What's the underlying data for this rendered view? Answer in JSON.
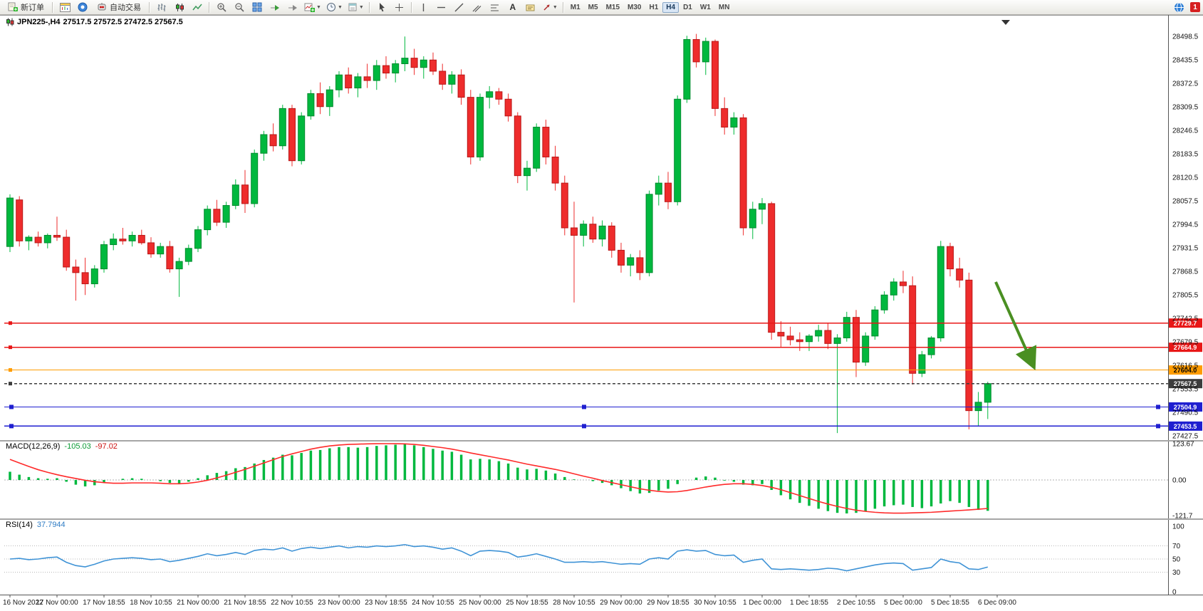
{
  "toolbar": {
    "new_order_label": "新订单",
    "autotrading_label": "自动交易",
    "text_tool_label": "A",
    "timeframes": [
      "M1",
      "M5",
      "M15",
      "M30",
      "H1",
      "H4",
      "D1",
      "W1",
      "MN"
    ],
    "active_timeframe": "H4",
    "badge": "1"
  },
  "chart": {
    "symbol_period": "JPN225-,H4",
    "ohlc": "27517.5 27572.5 27472.5 27567.5"
  },
  "macd": {
    "label": "MACD(12,26,9)",
    "value_main": "-105.03",
    "value_signal": "-97.02"
  },
  "rsi": {
    "label": "RSI(14)",
    "value": "37.7944"
  },
  "chart_data": {
    "type": "candlestick",
    "symbol": "JPN225-",
    "timeframe": "H4",
    "last_ohlc": {
      "open": 27517.5,
      "high": 27572.5,
      "low": 27472.5,
      "close": 27567.5
    },
    "up_color": "#00b83e",
    "down_color": "#ee2c2c",
    "y_ticks": [
      28498.5,
      28435.5,
      28372.5,
      28309.5,
      28246.5,
      28183.5,
      28120.5,
      28057.5,
      27994.5,
      27931.5,
      27868.5,
      27805.5,
      27742.5,
      27679.5,
      27616.5,
      27553.5,
      27490.5,
      27427.5
    ],
    "x_labels": [
      "16 Nov 2022",
      "17 Nov 00:00",
      "17 Nov 18:55",
      "18 Nov 10:55",
      "21 Nov 00:00",
      "21 Nov 18:55",
      "22 Nov 10:55",
      "23 Nov 00:00",
      "23 Nov 18:55",
      "24 Nov 10:55",
      "25 Nov 00:00",
      "25 Nov 18:55",
      "28 Nov 10:55",
      "29 Nov 00:00",
      "29 Nov 18:55",
      "30 Nov 10:55",
      "1 Dec 00:00",
      "1 Dec 18:55",
      "2 Dec 10:55",
      "5 Dec 00:00",
      "5 Dec 18:55",
      "6 Dec 09:00"
    ],
    "candles": [
      [
        27935,
        28075,
        27920,
        28065
      ],
      [
        28060,
        28070,
        27935,
        27950
      ],
      [
        27950,
        27965,
        27925,
        27960
      ],
      [
        27960,
        27975,
        27935,
        27945
      ],
      [
        27945,
        27970,
        27930,
        27965
      ],
      [
        27965,
        28015,
        27950,
        27960
      ],
      [
        27960,
        27980,
        27870,
        27880
      ],
      [
        27880,
        27900,
        27790,
        27865
      ],
      [
        27865,
        27905,
        27805,
        27835
      ],
      [
        27835,
        27885,
        27825,
        27875
      ],
      [
        27875,
        27950,
        27865,
        27940
      ],
      [
        27940,
        27970,
        27925,
        27955
      ],
      [
        27955,
        27985,
        27940,
        27950
      ],
      [
        27950,
        27975,
        27935,
        27965
      ],
      [
        27965,
        27980,
        27940,
        27945
      ],
      [
        27945,
        27960,
        27905,
        27915
      ],
      [
        27915,
        27945,
        27905,
        27935
      ],
      [
        27935,
        27950,
        27865,
        27875
      ],
      [
        27875,
        27905,
        27800,
        27895
      ],
      [
        27895,
        27940,
        27885,
        27930
      ],
      [
        27930,
        27990,
        27920,
        27980
      ],
      [
        27980,
        28045,
        27965,
        28035
      ],
      [
        28035,
        28060,
        27990,
        28000
      ],
      [
        28000,
        28055,
        27985,
        28045
      ],
      [
        28045,
        28115,
        28035,
        28100
      ],
      [
        28100,
        28140,
        28025,
        28050
      ],
      [
        28050,
        28195,
        28040,
        28185
      ],
      [
        28185,
        28245,
        28165,
        28235
      ],
      [
        28235,
        28265,
        28190,
        28205
      ],
      [
        28205,
        28315,
        28195,
        28305
      ],
      [
        28305,
        28315,
        28150,
        28165
      ],
      [
        28165,
        28295,
        28155,
        28285
      ],
      [
        28285,
        28355,
        28275,
        28345
      ],
      [
        28345,
        28375,
        28290,
        28310
      ],
      [
        28310,
        28365,
        28285,
        28355
      ],
      [
        28355,
        28405,
        28335,
        28395
      ],
      [
        28395,
        28415,
        28345,
        28360
      ],
      [
        28360,
        28400,
        28335,
        28390
      ],
      [
        28390,
        28425,
        28360,
        28380
      ],
      [
        28380,
        28435,
        28355,
        28420
      ],
      [
        28420,
        28445,
        28385,
        28400
      ],
      [
        28400,
        28435,
        28375,
        28425
      ],
      [
        28425,
        28498,
        28405,
        28440
      ],
      [
        28440,
        28465,
        28395,
        28415
      ],
      [
        28415,
        28445,
        28385,
        28435
      ],
      [
        28435,
        28455,
        28395,
        28405
      ],
      [
        28405,
        28425,
        28355,
        28370
      ],
      [
        28370,
        28405,
        28345,
        28395
      ],
      [
        28395,
        28410,
        28315,
        28335
      ],
      [
        28335,
        28355,
        28155,
        28175
      ],
      [
        28175,
        28345,
        28165,
        28335
      ],
      [
        28335,
        28365,
        28305,
        28350
      ],
      [
        28350,
        28360,
        28315,
        28330
      ],
      [
        28330,
        28345,
        28270,
        28285
      ],
      [
        28285,
        28295,
        28105,
        28125
      ],
      [
        28125,
        28165,
        28085,
        28145
      ],
      [
        28145,
        28265,
        28135,
        28255
      ],
      [
        28255,
        28275,
        28155,
        28175
      ],
      [
        28175,
        28205,
        28085,
        28105
      ],
      [
        28105,
        28125,
        27965,
        27985
      ],
      [
        27985,
        28055,
        27785,
        27965
      ],
      [
        27965,
        28005,
        27935,
        27995
      ],
      [
        27995,
        28015,
        27945,
        27955
      ],
      [
        27955,
        28005,
        27935,
        27990
      ],
      [
        27990,
        28000,
        27905,
        27925
      ],
      [
        27925,
        27945,
        27865,
        27885
      ],
      [
        27885,
        27915,
        27855,
        27905
      ],
      [
        27905,
        27925,
        27845,
        27865
      ],
      [
        27865,
        28085,
        27855,
        28075
      ],
      [
        28075,
        28125,
        28045,
        28105
      ],
      [
        28105,
        28135,
        28035,
        28055
      ],
      [
        28055,
        28340,
        28045,
        28330
      ],
      [
        28330,
        28500,
        28320,
        28490
      ],
      [
        28490,
        28505,
        28415,
        28430
      ],
      [
        28430,
        28495,
        28395,
        28485
      ],
      [
        28485,
        28490,
        28285,
        28305
      ],
      [
        28305,
        28335,
        28235,
        28255
      ],
      [
        28255,
        28295,
        28235,
        28280
      ],
      [
        28280,
        28290,
        27965,
        27985
      ],
      [
        27985,
        28055,
        27955,
        28035
      ],
      [
        28035,
        28065,
        27995,
        28050
      ],
      [
        28050,
        28055,
        27685,
        27705
      ],
      [
        27705,
        27735,
        27665,
        27695
      ],
      [
        27695,
        27720,
        27670,
        27685
      ],
      [
        27685,
        27705,
        27655,
        27680
      ],
      [
        27680,
        27700,
        27655,
        27695
      ],
      [
        27695,
        27725,
        27680,
        27710
      ],
      [
        27710,
        27730,
        27660,
        27675
      ],
      [
        27675,
        27700,
        27435,
        27690
      ],
      [
        27690,
        27760,
        27680,
        27745
      ],
      [
        27745,
        27765,
        27585,
        27625
      ],
      [
        27625,
        27705,
        27615,
        27695
      ],
      [
        27695,
        27775,
        27685,
        27765
      ],
      [
        27765,
        27815,
        27755,
        27805
      ],
      [
        27805,
        27850,
        27790,
        27840
      ],
      [
        27840,
        27870,
        27810,
        27830
      ],
      [
        27830,
        27855,
        27565,
        27595
      ],
      [
        27595,
        27655,
        27585,
        27645
      ],
      [
        27645,
        27695,
        27635,
        27690
      ],
      [
        27690,
        27950,
        27680,
        27935
      ],
      [
        27935,
        27945,
        27855,
        27875
      ],
      [
        27875,
        27905,
        27825,
        27845
      ],
      [
        27845,
        27865,
        27445,
        27495
      ],
      [
        27495,
        27545,
        27455,
        27517.5
      ],
      [
        27517.5,
        27572.5,
        27472.5,
        27567.5
      ]
    ],
    "hlines": [
      {
        "price": 27729.7,
        "label": "27729.7",
        "color": "#e81717",
        "style": "solid",
        "handles": false
      },
      {
        "price": 27664.9,
        "label": "27664.9",
        "color": "#e81717",
        "style": "solid",
        "handles": false
      },
      {
        "price": 27604.0,
        "label": "27604.0",
        "color": "#ff9c00",
        "style": "solid",
        "handles": false
      },
      {
        "price": 27567.5,
        "label": "27567.5",
        "color": "#3c3c3c",
        "style": "dashed",
        "handles": false
      },
      {
        "price": 27504.9,
        "label": "27504.9",
        "color": "#1f1fd0",
        "style": "solid",
        "handles": true
      },
      {
        "price": 27453.5,
        "label": "27453.5",
        "color": "#1f1fd0",
        "style": "solid",
        "handles": true
      }
    ],
    "arrow": {
      "from_price": 27840,
      "to_price": 27610,
      "color": "#4a8f22"
    },
    "indicators": {
      "macd": {
        "name": "MACD",
        "params": "12,26,9",
        "hist_color": "#00b83e",
        "signal_color": "#ff2a2a",
        "y_ticks": [
          {
            "label": "123.67",
            "value": 123.67
          },
          {
            "label": "0.00",
            "value": 0
          },
          {
            "label": "-121.7",
            "value": -121.7
          }
        ],
        "histogram": [
          28,
          18,
          10,
          6,
          4,
          6,
          -6,
          -16,
          -22,
          -18,
          -8,
          0,
          4,
          6,
          4,
          0,
          -4,
          -10,
          -12,
          -6,
          6,
          16,
          24,
          30,
          40,
          44,
          56,
          68,
          76,
          86,
          84,
          92,
          100,
          102,
          108,
          112,
          112,
          110,
          112,
          116,
          118,
          120,
          123,
          118,
          112,
          106,
          100,
          96,
          86,
          70,
          72,
          70,
          64,
          56,
          42,
          36,
          38,
          32,
          22,
          10,
          2,
          0,
          -4,
          -10,
          -18,
          -28,
          -38,
          -46,
          -44,
          -36,
          -30,
          -14,
          0,
          8,
          12,
          8,
          -2,
          -6,
          -16,
          -18,
          -14,
          -34,
          -52,
          -66,
          -78,
          -88,
          -98,
          -106,
          -112,
          -114,
          -112,
          -106,
          -98,
          -90,
          -86,
          -84,
          -92,
          -96,
          -90,
          -80,
          -72,
          -78,
          -92,
          -102,
          -105.03
        ],
        "signal": [
          70,
          58,
          46,
          35,
          26,
          18,
          11,
          5,
          -1,
          -6,
          -9,
          -11,
          -11,
          -10,
          -10,
          -10,
          -11,
          -13,
          -13,
          -11,
          -7,
          -1,
          7,
          16,
          26,
          36,
          47,
          58,
          69,
          80,
          89,
          97,
          105,
          111,
          116,
          119,
          121,
          122,
          123,
          123.5,
          123.67,
          123.5,
          123,
          121,
          118,
          114,
          110,
          105,
          99,
          92,
          86,
          80,
          74,
          68,
          61,
          54,
          48,
          42,
          36,
          29,
          21,
          13,
          6,
          -2,
          -9,
          -16,
          -23,
          -30,
          -35,
          -39,
          -41,
          -40,
          -36,
          -30,
          -24,
          -19,
          -15,
          -13,
          -13,
          -15,
          -19,
          -25,
          -33,
          -43,
          -53,
          -63,
          -73,
          -82,
          -90,
          -97,
          -103,
          -107,
          -110,
          -112,
          -113,
          -113,
          -112,
          -111,
          -110,
          -108,
          -106,
          -104,
          -102,
          -99.5,
          -97.02
        ]
      },
      "rsi": {
        "name": "RSI",
        "period": 14,
        "color": "#3f93d6",
        "levels": [
          70,
          50,
          30
        ],
        "y_ticks": [
          {
            "label": "100",
            "value": 100
          },
          {
            "label": "70",
            "value": 70
          },
          {
            "label": "50",
            "value": 50
          },
          {
            "label": "30",
            "value": 30
          },
          {
            "label": "0",
            "value": 0
          }
        ],
        "values": [
          50,
          51,
          49,
          50,
          52,
          53,
          45,
          40,
          38,
          42,
          47,
          50,
          51,
          52,
          51,
          49,
          50,
          46,
          48,
          51,
          54,
          58,
          55,
          57,
          60,
          57,
          63,
          65,
          64,
          67,
          62,
          66,
          68,
          66,
          68,
          70,
          67,
          69,
          68,
          70,
          69,
          70,
          72,
          69,
          70,
          68,
          65,
          67,
          62,
          55,
          62,
          63,
          62,
          60,
          53,
          55,
          58,
          54,
          50,
          45,
          45,
          46,
          45,
          46,
          44,
          42,
          43,
          42,
          50,
          52,
          50,
          62,
          64,
          62,
          63,
          57,
          55,
          56,
          45,
          48,
          50,
          35,
          34,
          35,
          34,
          33,
          34,
          36,
          35,
          32,
          35,
          38,
          41,
          43,
          44,
          43,
          33,
          35,
          37,
          50,
          46,
          44,
          35,
          34,
          37.79
        ]
      }
    }
  }
}
